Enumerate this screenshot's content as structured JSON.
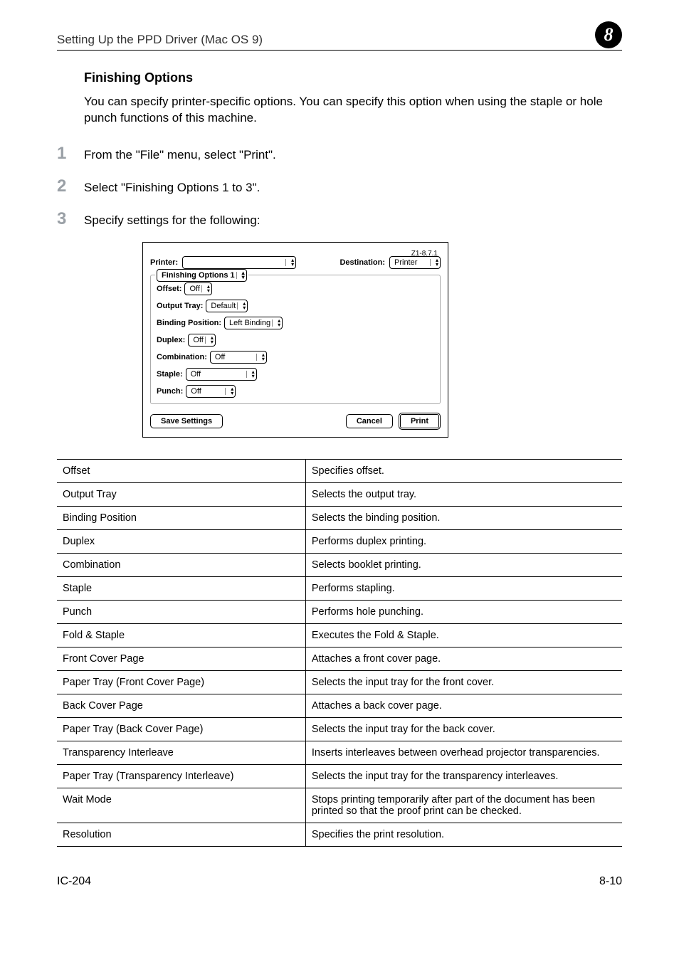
{
  "header": {
    "title": "Setting Up the PPD Driver (Mac OS 9)",
    "chapter": "8"
  },
  "section": {
    "title": "Finishing Options",
    "intro": "You can specify printer-specific options. You can specify this option when using the staple or hole punch functions of this machine."
  },
  "steps": [
    "From the \"File\" menu, select \"Print\".",
    "Select \"Finishing Options 1 to 3\".",
    "Specify settings for the following:"
  ],
  "dialog": {
    "version": "Z1-8.7.1",
    "printer_label": "Printer:",
    "printer_value": "",
    "destination_label": "Destination:",
    "destination_value": "Printer",
    "group_select": "Finishing Options 1",
    "fields": {
      "offset_label": "Offset:",
      "offset_value": "Off",
      "output_tray_label": "Output Tray:",
      "output_tray_value": "Default",
      "binding_label": "Binding Position:",
      "binding_value": "Left Binding",
      "duplex_label": "Duplex:",
      "duplex_value": "Off",
      "combination_label": "Combination:",
      "combination_value": "Off",
      "staple_label": "Staple:",
      "staple_value": "Off",
      "punch_label": "Punch:",
      "punch_value": "Off"
    },
    "buttons": {
      "save": "Save Settings",
      "cancel": "Cancel",
      "print": "Print"
    }
  },
  "options_table": {
    "rows": [
      [
        "Offset",
        "Specifies offset."
      ],
      [
        "Output Tray",
        "Selects the output tray."
      ],
      [
        "Binding Position",
        "Selects the binding position."
      ],
      [
        "Duplex",
        "Performs duplex printing."
      ],
      [
        "Combination",
        "Selects booklet printing."
      ],
      [
        "Staple",
        "Performs stapling."
      ],
      [
        "Punch",
        "Performs hole punching."
      ],
      [
        "Fold & Staple",
        "Executes the Fold & Staple."
      ],
      [
        "Front Cover Page",
        "Attaches a front cover page."
      ],
      [
        "Paper Tray (Front Cover Page)",
        "Selects the input tray for the front cover."
      ],
      [
        "Back Cover Page",
        "Attaches a back cover page."
      ],
      [
        "Paper Tray (Back Cover Page)",
        "Selects the input tray for the back cover."
      ],
      [
        "Transparency Interleave",
        "Inserts interleaves between overhead projector transparencies."
      ],
      [
        "Paper Tray (Transparency Interleave)",
        "Selects the input tray for the transparency interleaves."
      ],
      [
        "Wait Mode",
        "Stops printing temporarily after part of the document has been printed so that the proof print can be checked."
      ],
      [
        "Resolution",
        "Specifies the print resolution."
      ]
    ]
  },
  "footer": {
    "left": "IC-204",
    "right": "8-10"
  }
}
